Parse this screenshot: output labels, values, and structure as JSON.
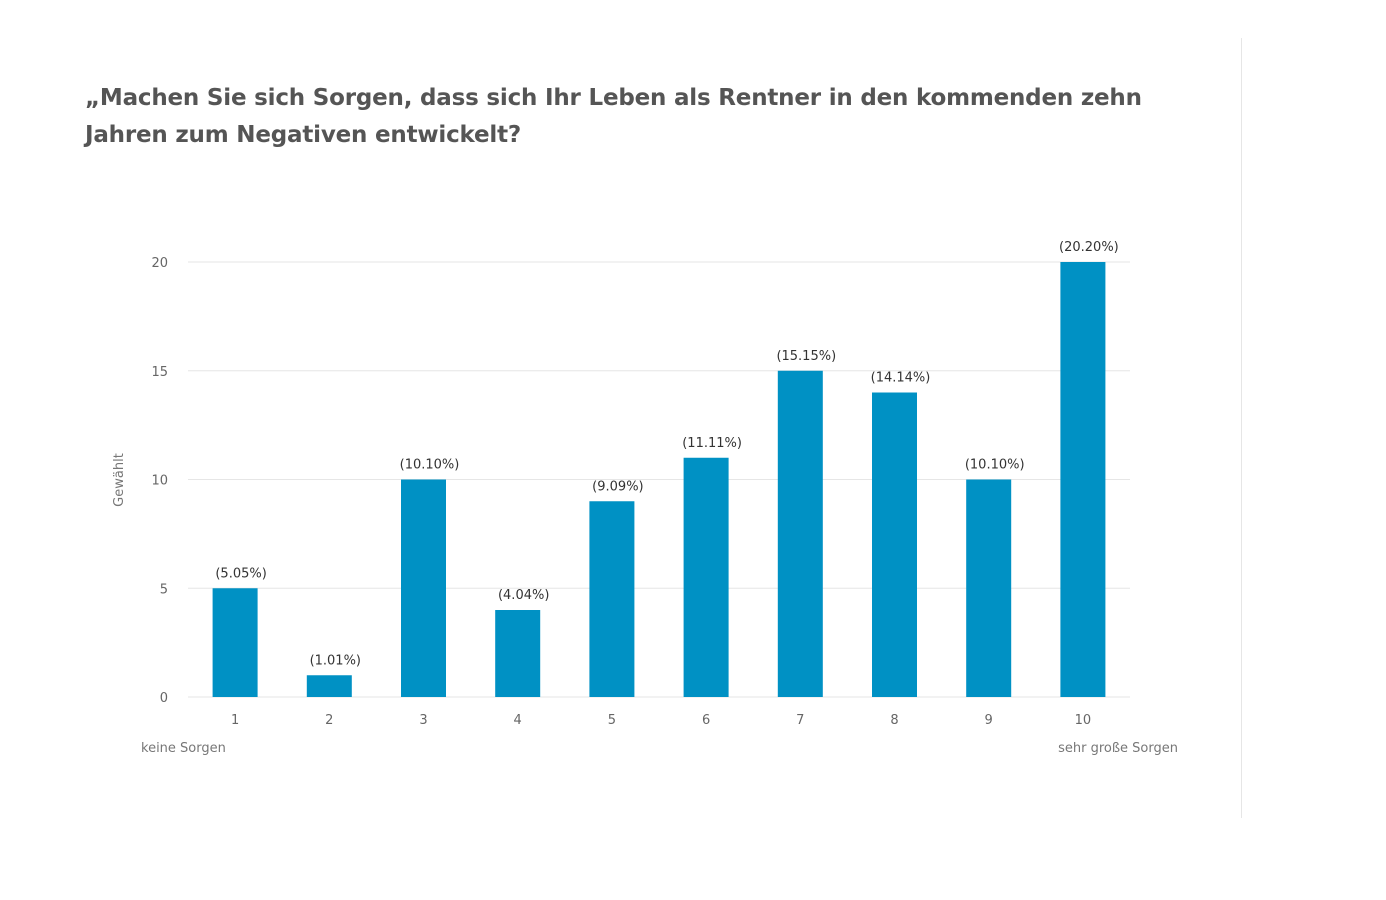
{
  "chart_data": {
    "type": "bar",
    "title": "„Machen Sie sich Sorgen, dass sich Ihr Leben als Rentner in den kommenden zehn Jahren zum Negativen entwickelt?",
    "categories": [
      "1",
      "2",
      "3",
      "4",
      "5",
      "6",
      "7",
      "8",
      "9",
      "10"
    ],
    "values": [
      5,
      1,
      10,
      4,
      9,
      11,
      15,
      14,
      10,
      20
    ],
    "data_labels": [
      "(5.05%)",
      "(1.01%)",
      "(10.10%)",
      "(4.04%)",
      "(9.09%)",
      "(11.11%)",
      "(15.15%)",
      "(14.14%)",
      "(10.10%)",
      "(20.20%)"
    ],
    "ylabel": "Gewählt",
    "xlabel_left": "keine Sorgen",
    "xlabel_right": "sehr große Sorgen",
    "yticks": [
      0,
      5,
      10,
      15,
      20
    ],
    "ylim": [
      0,
      20
    ],
    "grid": true,
    "color": "#0091c4"
  }
}
